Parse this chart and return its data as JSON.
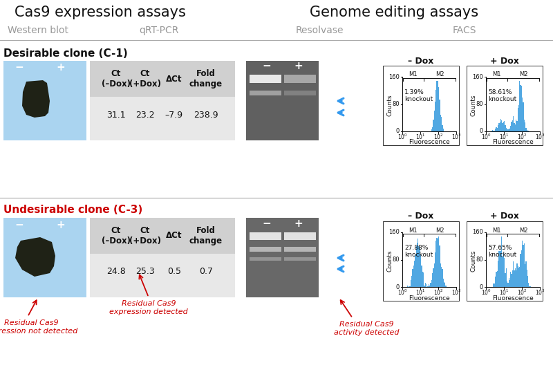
{
  "title_left": "Cas9 expression assays",
  "title_right": "Genome editing assays",
  "subtitle_wblot": "Western blot",
  "subtitle_qpcr": "qRT-PCR",
  "subtitle_resolvase": "Resolvase",
  "subtitle_facs": "FACS",
  "clone1_label": "Desirable clone (C-1)",
  "clone2_label": "Undesirable clone (C-3)",
  "table1_headers": [
    "Ct\n(–Dox)",
    "Ct\n(+Dox)",
    "ΔCt",
    "Fold\nchange"
  ],
  "table1_values": [
    "31.1",
    "23.2",
    "–7.9",
    "238.9"
  ],
  "table2_headers": [
    "Ct\n(–Dox)",
    "Ct\n(+Dox)",
    "ΔCt",
    "Fold\nchange"
  ],
  "table2_values": [
    "24.8",
    "25.3",
    "0.5",
    "0.7"
  ],
  "facs1_nodox_pct": "1.39%\nknockout",
  "facs1_dox_pct": "58.61%\nknockout",
  "facs2_nodox_pct": "27.88%\nknockout",
  "facs2_dox_pct": "57.65%\nknockout",
  "bg_color": "#ffffff",
  "table_bg_header": "#d0d0d0",
  "table_bg_body": "#e8e8e8",
  "wb_bg": "#aad4f0",
  "arrow_color": "#3399ee",
  "annotation_color": "#cc0000",
  "divider_color": "#aaaaaa",
  "text_color_gray": "#999999",
  "facs_hist_color": "#3399dd",
  "gel_bg_dark": "#555555",
  "gel_bg_mid": "#666666"
}
